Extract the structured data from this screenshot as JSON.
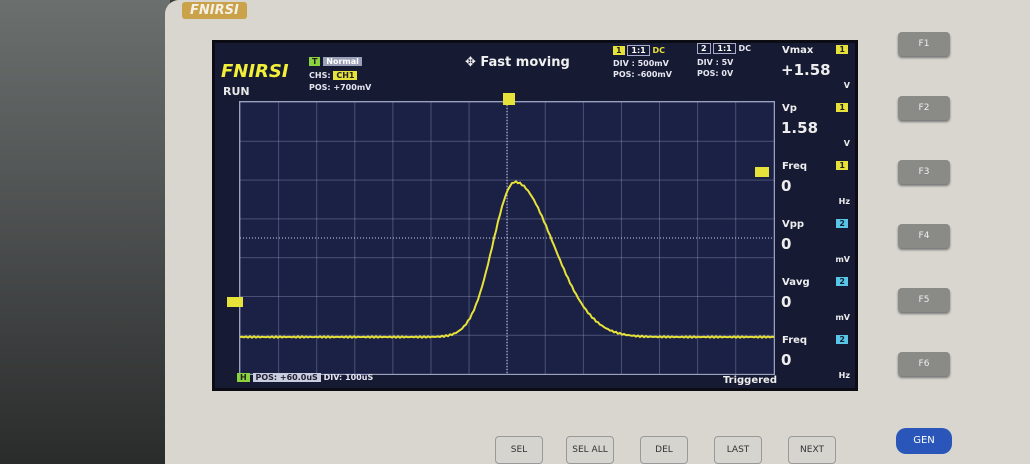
{
  "device": {
    "brand": "FNIRSI"
  },
  "screen": {
    "logo": "FNIRSI",
    "status": "RUN",
    "trigger": {
      "channel_tag": "T",
      "mode": "Normal",
      "source_label": "CHS:",
      "source": "CH1",
      "pos": "POS: +700mV"
    },
    "title": "✥ Fast moving",
    "ch1": {
      "tag": "1",
      "probe": "1:1",
      "coupling": "DC",
      "div": "DIV : 500mV",
      "pos": "POS: -600mV"
    },
    "ch2": {
      "tag": "2",
      "probe": "1:1",
      "coupling": "DC",
      "div": "DIV : 5V",
      "pos": "POS: 0V"
    },
    "measurements": [
      {
        "name": "Vmax",
        "channel": "1",
        "value": "+1.58",
        "unit": "V"
      },
      {
        "name": "Vp",
        "channel": "1",
        "value": "1.58",
        "unit": "V"
      },
      {
        "name": "Freq",
        "channel": "1",
        "value": "0",
        "unit": "Hz"
      },
      {
        "name": "Vpp",
        "channel": "2",
        "value": "0",
        "unit": "mV"
      },
      {
        "name": "Vavg",
        "channel": "2",
        "value": "0",
        "unit": "mV"
      },
      {
        "name": "Freq",
        "channel": "2",
        "value": "0",
        "unit": "Hz"
      }
    ],
    "timebase": {
      "tag": "H",
      "pos": "POS: +60.0uS",
      "div": "DIV: 100uS"
    },
    "trigger_state": "Triggered",
    "colors": {
      "ch1": "#e7e23a",
      "ch2": "#59c6e8",
      "background": "#1b2144"
    }
  },
  "function_keys": [
    "F1",
    "F2",
    "F3",
    "F4",
    "F5",
    "F6"
  ],
  "bottom_buttons": [
    "SEL",
    "SEL ALL",
    "DEL",
    "LAST",
    "NEXT"
  ],
  "gen_button": "GEN"
}
